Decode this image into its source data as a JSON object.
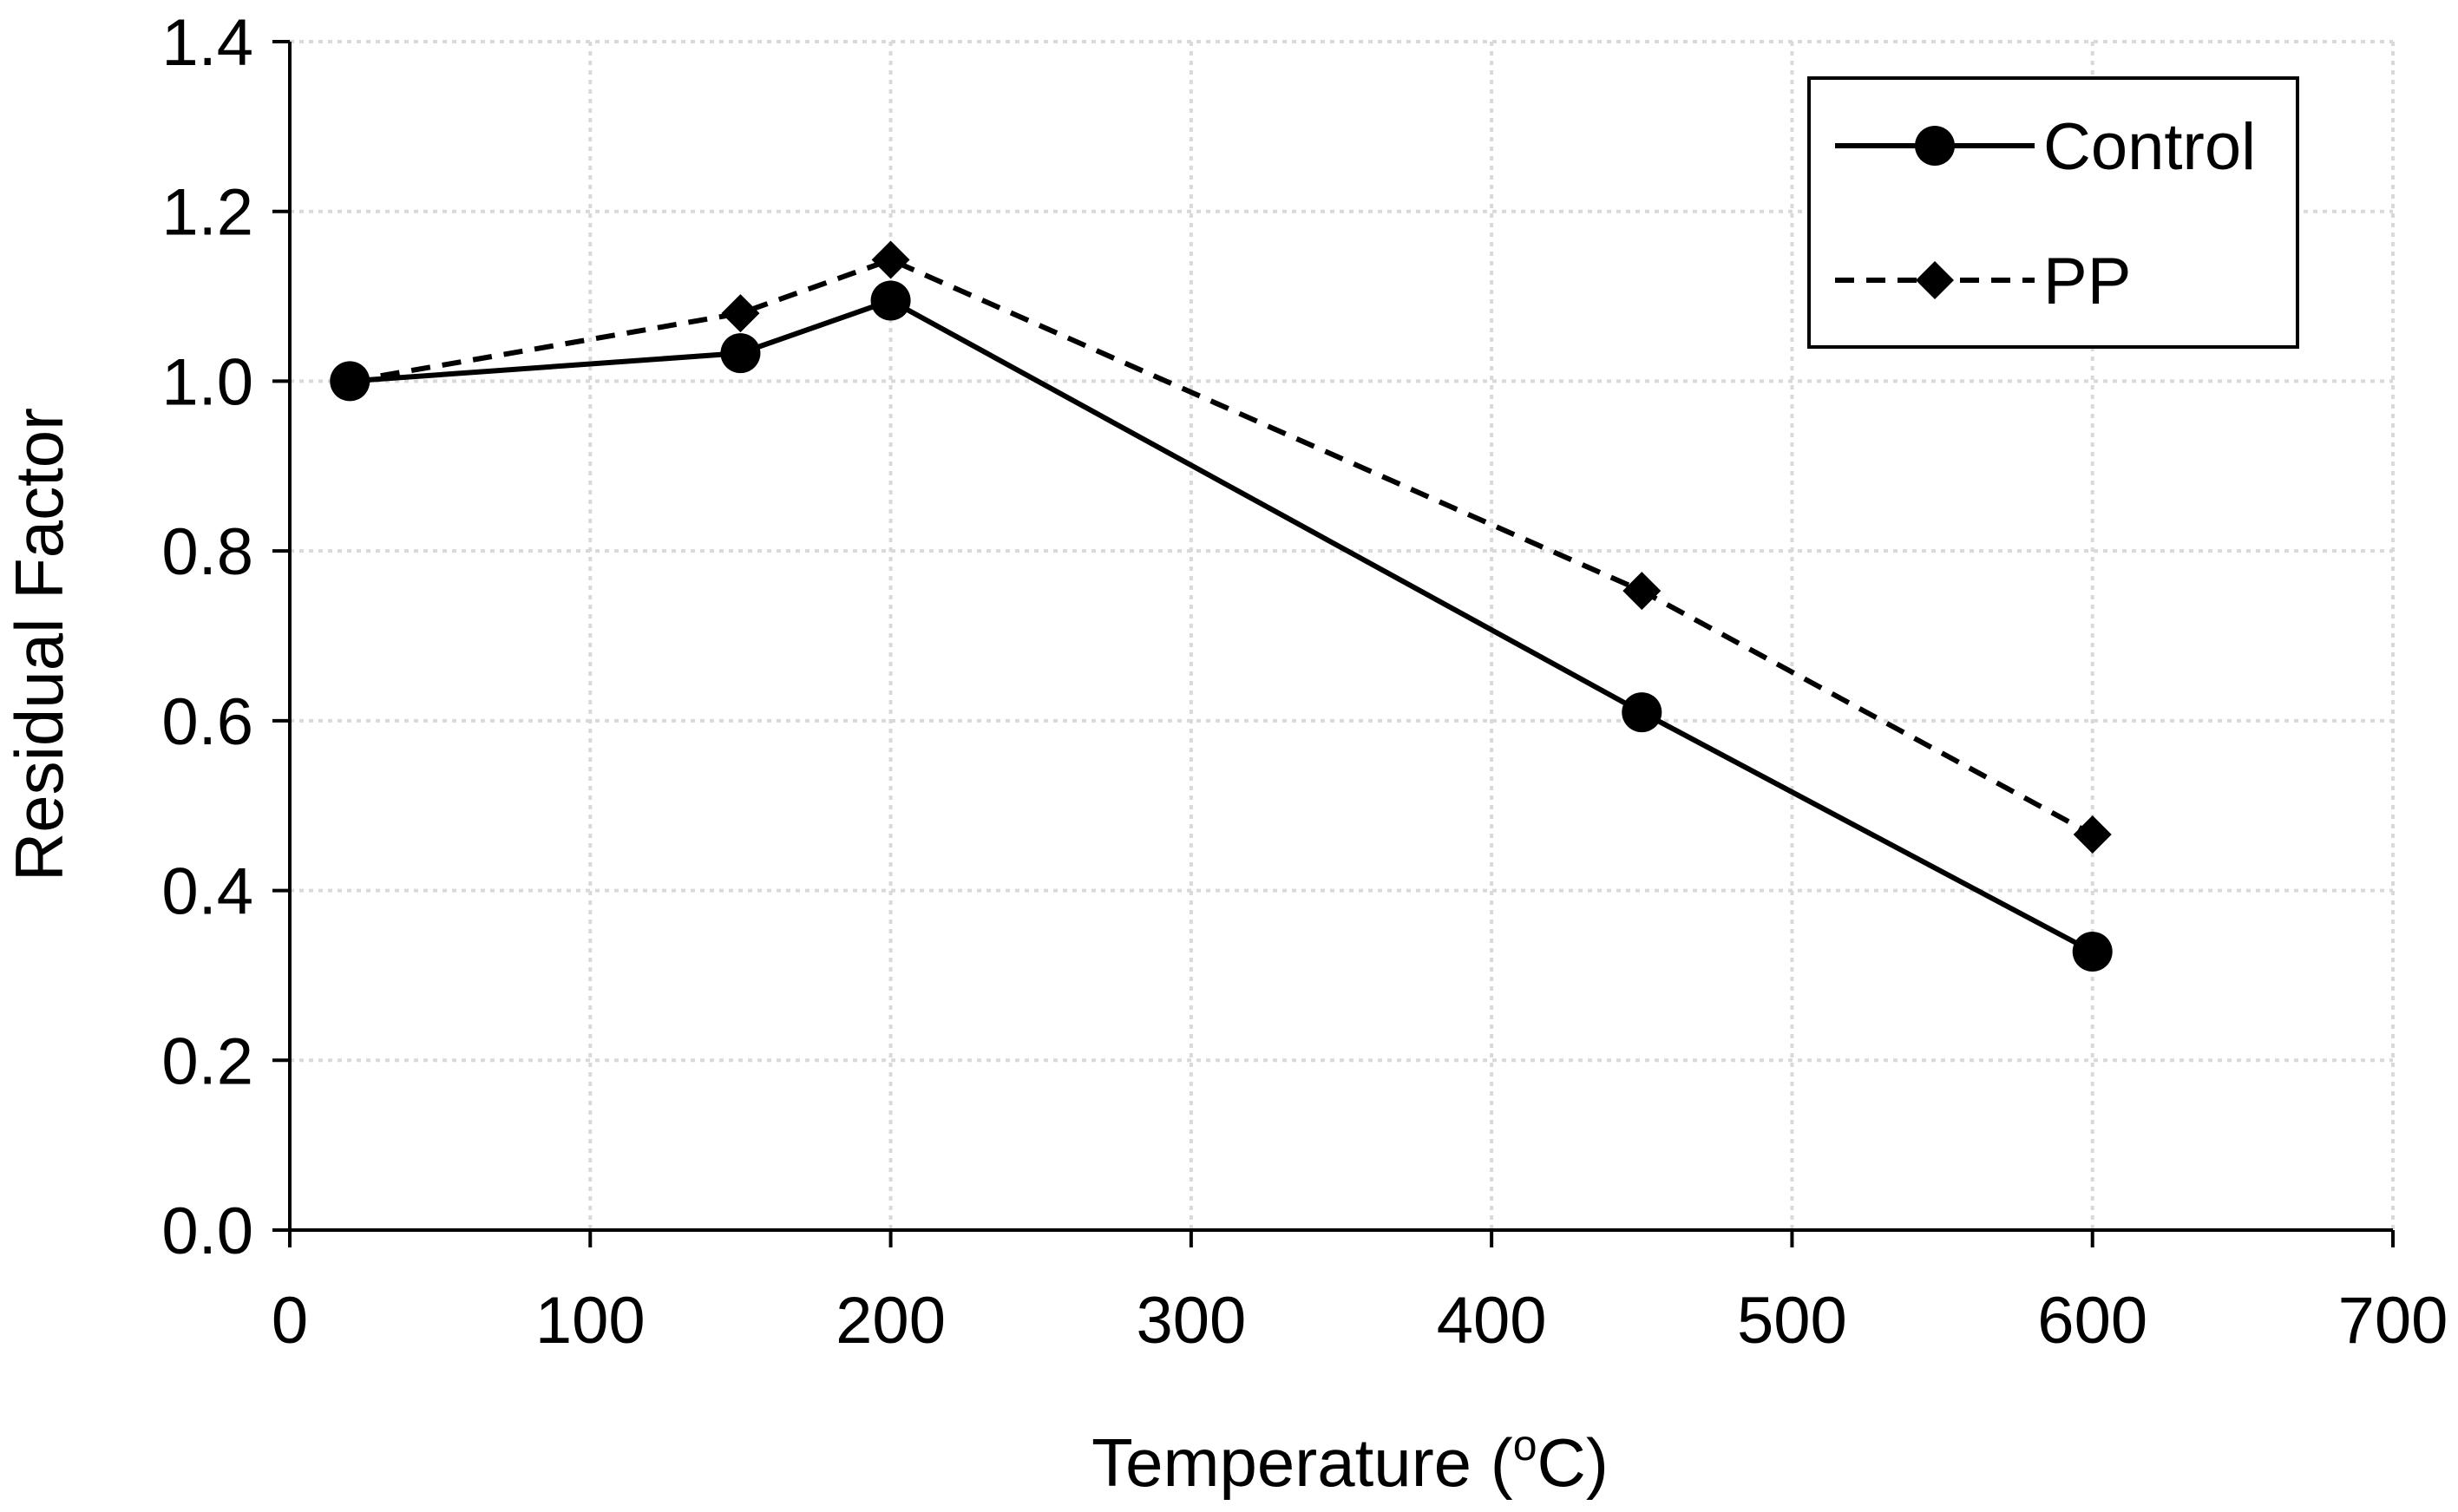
{
  "chart_data": {
    "type": "line",
    "title": "",
    "xlabel": {
      "prefix": "Temperature (",
      "superscript": "o",
      "suffix": "C)"
    },
    "ylabel": "Residual Factor",
    "xlim": [
      0,
      700
    ],
    "ylim": [
      0.0,
      1.4
    ],
    "xticks": [
      0,
      100,
      200,
      300,
      400,
      500,
      600,
      700
    ],
    "yticks": [
      0.0,
      0.2,
      0.4,
      0.6,
      0.8,
      1.0,
      1.2,
      1.4
    ],
    "xtick_labels": [
      "0",
      "100",
      "200",
      "300",
      "400",
      "500",
      "600",
      "700"
    ],
    "ytick_labels": [
      "0.0",
      "0.2",
      "0.4",
      "0.6",
      "0.8",
      "1.0",
      "1.2",
      "1.4"
    ],
    "grid": true,
    "legend_position": "top-right",
    "series": [
      {
        "name": "Control",
        "marker": "circle",
        "line": "solid",
        "color": "#000000",
        "x": [
          20,
          150,
          200,
          450,
          600
        ],
        "y": [
          1.0,
          1.033,
          1.095,
          0.61,
          0.328
        ]
      },
      {
        "name": "PP",
        "marker": "diamond",
        "line": "dashed",
        "color": "#000000",
        "x": [
          20,
          150,
          200,
          450,
          600
        ],
        "y": [
          1.0,
          1.08,
          1.143,
          0.753,
          0.466
        ]
      }
    ]
  },
  "colors": {
    "axis": "#000000",
    "grid": "#d9d9d9",
    "background": "#ffffff"
  }
}
